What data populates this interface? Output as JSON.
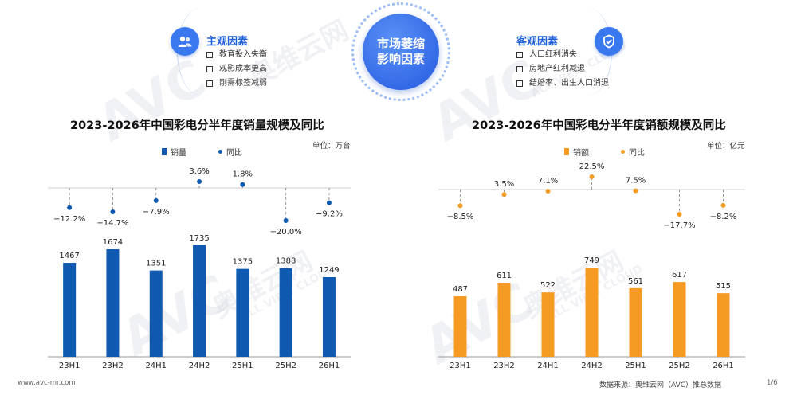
{
  "center": {
    "line1": "市场萎缩",
    "line2": "影响因素"
  },
  "subjective": {
    "title": "主观因素",
    "items": [
      "教育投入失衡",
      "观影成本更高",
      "刚需标签减弱"
    ]
  },
  "objective": {
    "title": "客观因素",
    "items": [
      "人口红利消失",
      "房地产红利减退",
      "结婚率、出生人口消退"
    ]
  },
  "chart_data": [
    {
      "type": "bar",
      "title": "2023-2026年中国彩电分半年度销量规模及同比",
      "unit": "单位：万台",
      "categories": [
        "23H1",
        "23H2",
        "24H1",
        "24H2",
        "25H1",
        "25H2",
        "26H1"
      ],
      "series": [
        {
          "name": "销量",
          "kind": "bar",
          "values": [
            1467,
            1674,
            1351,
            1735,
            1375,
            1388,
            1249
          ],
          "color": "#0f5ab0"
        },
        {
          "name": "同比",
          "kind": "dot",
          "values": [
            -12.2,
            -14.7,
            -7.9,
            3.6,
            1.8,
            -20.0,
            -9.2
          ],
          "labels": [
            "-12.2%",
            "-14.7%",
            "-7.9%",
            "3.6%",
            "1.8%",
            "-20.0%",
            "-9.2%"
          ],
          "color": "#0f5ab0"
        }
      ],
      "legend_position": "top"
    },
    {
      "type": "bar",
      "title": "2023-2026年中国彩电分半年度销额规模及同比",
      "unit": "单位：亿元",
      "categories": [
        "23H1",
        "23H2",
        "24H1",
        "24H2",
        "25H1",
        "25H2",
        "26H1"
      ],
      "series": [
        {
          "name": "销额",
          "kind": "bar",
          "values": [
            487,
            611,
            522,
            749,
            561,
            617,
            515
          ],
          "color": "#f59a23"
        },
        {
          "name": "同比",
          "kind": "dot",
          "values": [
            -8.5,
            3.5,
            7.1,
            22.5,
            7.5,
            -17.7,
            -8.2
          ],
          "labels": [
            "-8.5%",
            "3.5%",
            "7.1%",
            "22.5%",
            "7.5%",
            "-17.7%",
            "-8.2%"
          ],
          "color": "#f59a23"
        }
      ],
      "legend_position": "top"
    }
  ],
  "footer": {
    "website": "www.avc-mr.com",
    "source": "数据来源：奥维云网（AVC）推总数据",
    "page": "1/6"
  },
  "watermark": {
    "brand": "AVC",
    "cn": "奥维云网",
    "en": "ALL VIEW CLOUD"
  }
}
